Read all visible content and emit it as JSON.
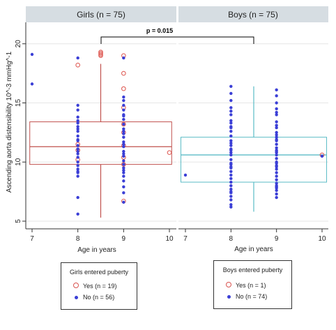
{
  "colors": {
    "girls": "#c0504d",
    "girls_open": "#e0625c",
    "boys": "#5bbcc6",
    "no_dots": "#3b3fd6",
    "header_bg": "#d6dde2"
  },
  "chart_data": {
    "type": "scatter",
    "ylabel": "Ascending aorta distensibility 10^-3 mmHg^-1",
    "ylim": [
      4.5,
      22
    ],
    "yticks": [
      5,
      10,
      15,
      20
    ],
    "xlim": [
      6.9,
      10.1
    ],
    "xticks": [
      7,
      8,
      9,
      10
    ],
    "comparison": {
      "label": "p = 0.015"
    },
    "panels": [
      {
        "title": "Girls (n = 75)",
        "xlabel": "Age in years",
        "box": {
          "x_left": 6.95,
          "x_right": 10.05,
          "q1": 9.8,
          "median": 11.3,
          "q3": 13.4,
          "whisker_x": 8.5,
          "whisker_low": 5.3,
          "whisker_high": 18.3
        },
        "series": [
          {
            "name": "Yes (n = 19)",
            "marker": "open-circle",
            "points": [
              [
                8,
                18.2
              ],
              [
                8,
                11.5
              ],
              [
                8,
                11.0
              ],
              [
                8,
                10.2
              ],
              [
                8.5,
                19.3
              ],
              [
                8.5,
                19.1
              ],
              [
                8.5,
                19.2
              ],
              [
                8.5,
                19.0
              ],
              [
                9,
                19.0
              ],
              [
                9,
                17.5
              ],
              [
                9,
                16.2
              ],
              [
                9,
                14.6
              ],
              [
                9,
                13.2
              ],
              [
                9,
                12.5
              ],
              [
                9,
                11.4
              ],
              [
                9,
                10.4
              ],
              [
                9,
                9.8
              ],
              [
                9,
                6.7
              ],
              [
                10,
                10.8
              ]
            ]
          },
          {
            "name": "No (n = 56)",
            "marker": "filled-dot",
            "points": [
              [
                7,
                19.1
              ],
              [
                7,
                16.6
              ],
              [
                8,
                18.8
              ],
              [
                8,
                14.8
              ],
              [
                8,
                14.4
              ],
              [
                8,
                13.8
              ],
              [
                8,
                13.3
              ],
              [
                8,
                13.0
              ],
              [
                8,
                12.6
              ],
              [
                8,
                12.2
              ],
              [
                8,
                11.8
              ],
              [
                8,
                11.4
              ],
              [
                8,
                11.1
              ],
              [
                8,
                10.7
              ],
              [
                8,
                10.4
              ],
              [
                8,
                10.0
              ],
              [
                8,
                9.7
              ],
              [
                8,
                9.4
              ],
              [
                8,
                9.1
              ],
              [
                8,
                8.8
              ],
              [
                8,
                7.0
              ],
              [
                8,
                5.6
              ],
              [
                9,
                18.8
              ],
              [
                9,
                15.5
              ],
              [
                9,
                15.2
              ],
              [
                9,
                14.8
              ],
              [
                9,
                14.4
              ],
              [
                9,
                14.0
              ],
              [
                9,
                13.6
              ],
              [
                9,
                13.2
              ],
              [
                9,
                12.8
              ],
              [
                9,
                12.4
              ],
              [
                9,
                12.1
              ],
              [
                9,
                11.7
              ],
              [
                9,
                11.3
              ],
              [
                9,
                10.9
              ],
              [
                9,
                10.5
              ],
              [
                9,
                10.1
              ],
              [
                9,
                9.8
              ],
              [
                9,
                9.5
              ],
              [
                9,
                9.1
              ],
              [
                9,
                8.8
              ],
              [
                9,
                8.4
              ],
              [
                9,
                7.9
              ],
              [
                9,
                7.4
              ],
              [
                9,
                6.6
              ],
              [
                8,
                12.8
              ],
              [
                8,
                11.9
              ],
              [
                8,
                10.9
              ],
              [
                9,
                12.6
              ],
              [
                9,
                11.5
              ],
              [
                9,
                10.7
              ],
              [
                8,
                9.2
              ],
              [
                9,
                9.3
              ],
              [
                9,
                13.9
              ],
              [
                8,
                13.5
              ]
            ]
          }
        ]
      },
      {
        "title": "Boys (n = 75)",
        "xlabel": "Age in years",
        "box": {
          "x_left": 6.9,
          "x_right": 10.1,
          "q1": 8.3,
          "median": 10.6,
          "q3": 12.1,
          "whisker_x": 8.5,
          "whisker_low": 5.8,
          "whisker_high": 16.4
        },
        "series": [
          {
            "name": "Yes (n = 1)",
            "marker": "open-circle",
            "points": [
              [
                10,
                10.6
              ]
            ]
          },
          {
            "name": "No (n = 74)",
            "marker": "filled-dot",
            "points": [
              [
                7,
                8.9
              ],
              [
                8,
                16.4
              ],
              [
                8,
                15.8
              ],
              [
                8,
                15.2
              ],
              [
                8,
                14.6
              ],
              [
                8,
                14.0
              ],
              [
                8,
                13.5
              ],
              [
                8,
                13.0
              ],
              [
                8,
                12.6
              ],
              [
                8,
                12.2
              ],
              [
                8,
                11.8
              ],
              [
                8,
                11.4
              ],
              [
                8,
                11.0
              ],
              [
                8,
                10.6
              ],
              [
                8,
                10.2
              ],
              [
                8,
                9.8
              ],
              [
                8,
                9.5
              ],
              [
                8,
                9.2
              ],
              [
                8,
                8.9
              ],
              [
                8,
                8.6
              ],
              [
                8,
                8.0
              ],
              [
                8,
                7.7
              ],
              [
                8,
                7.4
              ],
              [
                8,
                7.1
              ],
              [
                8,
                6.8
              ],
              [
                8,
                6.4
              ],
              [
                8,
                6.2
              ],
              [
                9,
                16.1
              ],
              [
                9,
                15.6
              ],
              [
                9,
                15.0
              ],
              [
                9,
                14.5
              ],
              [
                9,
                14.0
              ],
              [
                9,
                13.4
              ],
              [
                9,
                12.9
              ],
              [
                9,
                12.5
              ],
              [
                9,
                12.1
              ],
              [
                9,
                11.8
              ],
              [
                9,
                11.5
              ],
              [
                9,
                11.2
              ],
              [
                9,
                10.9
              ],
              [
                9,
                10.6
              ],
              [
                9,
                10.3
              ],
              [
                9,
                10.0
              ],
              [
                9,
                9.7
              ],
              [
                9,
                9.4
              ],
              [
                9,
                9.1
              ],
              [
                9,
                8.8
              ],
              [
                9,
                8.5
              ],
              [
                9,
                8.2
              ],
              [
                9,
                7.9
              ],
              [
                9,
                7.6
              ],
              [
                9,
                7.3
              ],
              [
                9,
                7.0
              ],
              [
                8,
                12.9
              ],
              [
                8,
                11.1
              ],
              [
                8,
                9.9
              ],
              [
                9,
                12.3
              ],
              [
                9,
                11.0
              ],
              [
                9,
                9.6
              ],
              [
                8,
                13.3
              ],
              [
                9,
                13.1
              ],
              [
                8,
                10.8
              ],
              [
                9,
                10.8
              ],
              [
                8,
                8.3
              ],
              [
                9,
                8.0
              ],
              [
                9,
                14.2
              ],
              [
                8,
                14.3
              ],
              [
                9,
                11.9
              ],
              [
                8,
                11.6
              ],
              [
                9,
                9.9
              ],
              [
                8,
                9.6
              ],
              [
                9,
                7.8
              ],
              [
                8,
                7.5
              ],
              [
                10,
                10.5
              ]
            ]
          }
        ]
      }
    ],
    "legends": [
      {
        "title": "Girls entered puberty",
        "items": [
          "Yes (n = 19)",
          "No (n = 56)"
        ]
      },
      {
        "title": "Boys entered puberty",
        "items": [
          "Yes (n = 1)",
          "No (n = 74)"
        ]
      }
    ]
  }
}
